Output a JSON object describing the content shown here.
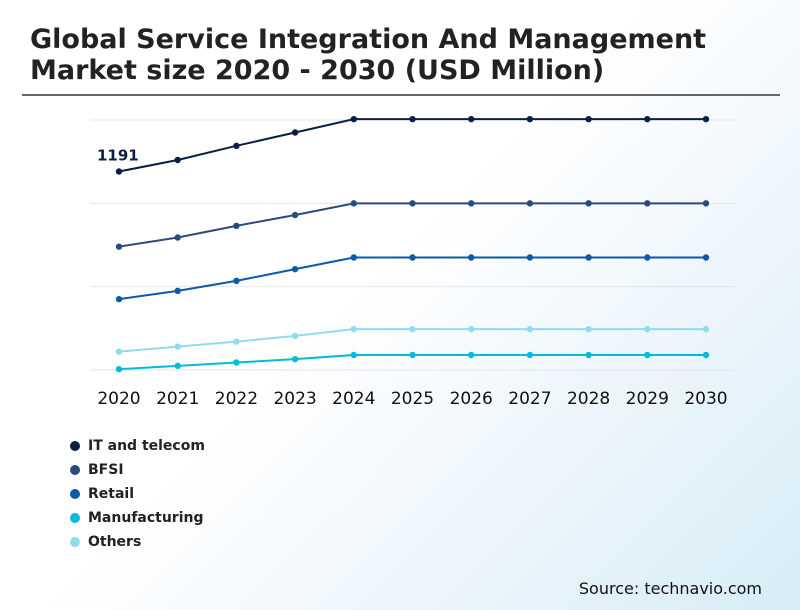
{
  "page": {
    "title": "Global Service Integration And Management Market size 2020 - 2030 (USD Million)",
    "source": "Source: technavio.com"
  },
  "chart_data": {
    "type": "line",
    "title": "Global Service Integration And Management Market size 2020 - 2030 (USD Million)",
    "xlabel": "",
    "ylabel": "",
    "grid": true,
    "y_axis_shown": false,
    "legend_position": "bottom-left",
    "categories": [
      "2020",
      "2021",
      "2022",
      "2023",
      "2024",
      "2025",
      "2026",
      "2027",
      "2028",
      "2029",
      "2030"
    ],
    "ylim": [
      0,
      1500
    ],
    "series": [
      {
        "name": "IT and telecom",
        "color": "#0b1f45",
        "values": [
          1191,
          1260,
          1345,
          1425,
          1505,
          1505,
          1505,
          1505,
          1505,
          1505,
          1505
        ]
      },
      {
        "name": "BFSI",
        "color": "#2c4a7c",
        "values": [
          740,
          795,
          865,
          930,
          1000,
          1000,
          1000,
          1000,
          1000,
          1000,
          1000
        ]
      },
      {
        "name": "Retail",
        "color": "#0b5aa6",
        "values": [
          425,
          475,
          535,
          605,
          675,
          675,
          675,
          675,
          675,
          675,
          675
        ]
      },
      {
        "name": "Manufacturing",
        "color": "#00bcd8",
        "values": [
          5,
          25,
          45,
          65,
          90,
          90,
          90,
          90,
          90,
          90,
          90
        ]
      },
      {
        "name": "Others",
        "color": "#8fdcef",
        "values": [
          110,
          140,
          170,
          205,
          245,
          245,
          245,
          245,
          245,
          245,
          245
        ]
      }
    ],
    "annotations": [
      {
        "series": "IT and telecom",
        "category": "2020",
        "label": "1191"
      }
    ]
  }
}
